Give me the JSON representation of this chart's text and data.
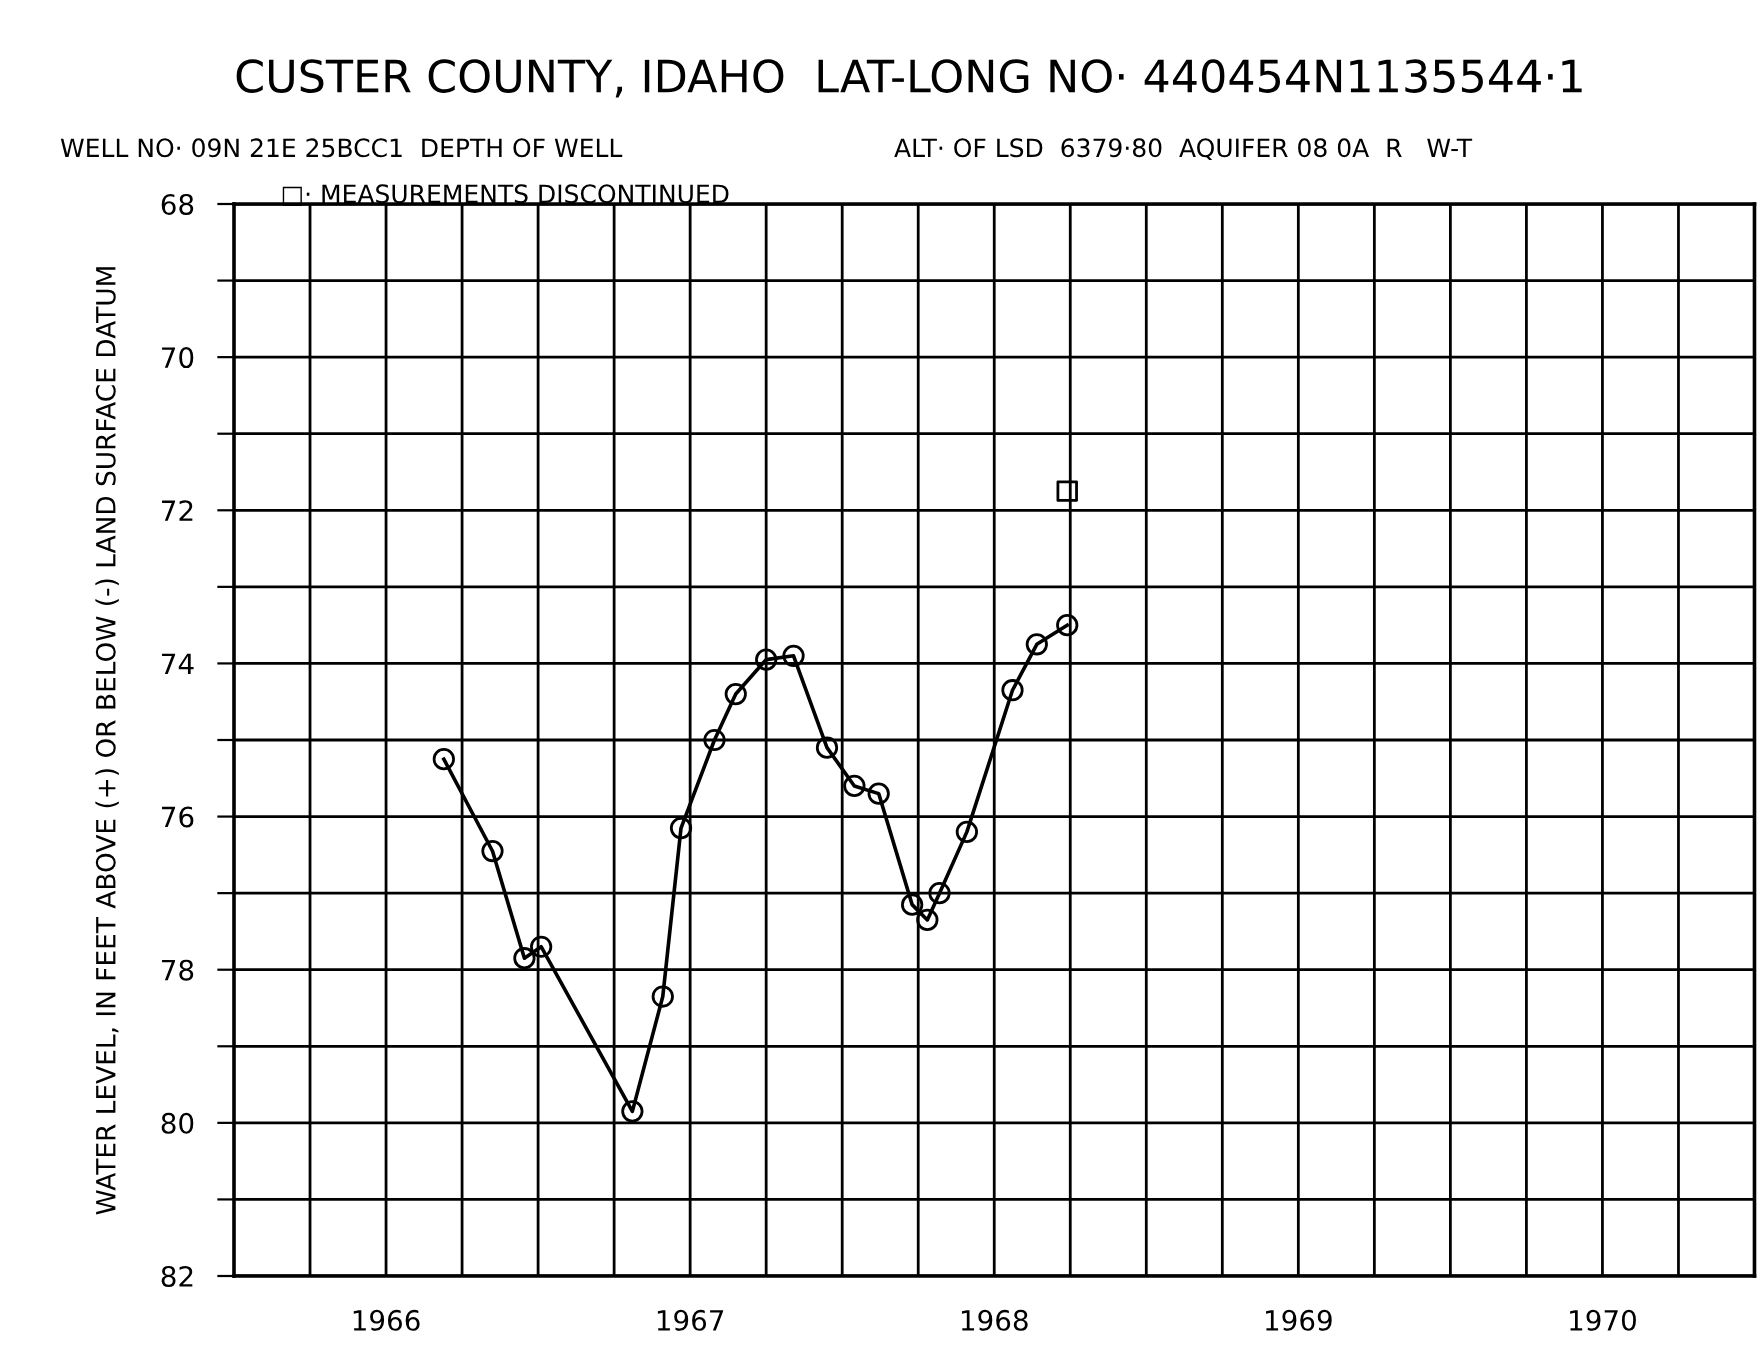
{
  "chart_data": {
    "type": "line",
    "title": "CUSTER COUNTY, IDAHO",
    "subtitle": "LAT-LONG NO· 440454N1135544·1",
    "annotations": [
      "WELL NO· 09N 21E 25BCC1  DEPTH OF WELL",
      "□· MEASUREMENTS DISCONTINUED",
      "ALT· OF LSD  6379·80  AQUIFER 08 0A  R   W-T"
    ],
    "ylabel": "WATER LEVEL, IN FEET ABOVE (+) OR BELOW (-) LAND SURFACE DATUM",
    "series": [
      {
        "color": "#000000",
        "marker": "circle",
        "x": [
          1966.69,
          1966.85,
          1966.955,
          1967.01,
          1967.31,
          1967.41,
          1967.47,
          1967.58,
          1967.65,
          1967.75,
          1967.84,
          1967.95,
          1968.04,
          1968.12,
          1968.23,
          1968.28,
          1968.32,
          1968.41,
          1968.56,
          1968.64,
          1968.74
        ],
        "values": [
          75.25,
          76.45,
          77.85,
          77.7,
          79.85,
          78.35,
          76.15,
          75.0,
          74.4,
          73.95,
          73.9,
          75.1,
          75.6,
          75.7,
          77.15,
          77.35,
          77.0,
          76.2,
          74.35,
          73.75,
          73.5
        ]
      },
      {
        "type": "scatter",
        "color": "#000000",
        "marker": "square",
        "x": [
          1968.74
        ],
        "values": [
          71.75
        ]
      }
    ],
    "xlim": [
      1966,
      1971
    ],
    "xticks": [
      {
        "value": 1966.25,
        "label": null
      },
      {
        "value": 1966.5,
        "label": "1966"
      },
      {
        "value": 1966.75,
        "label": null
      },
      {
        "value": 1967,
        "label": null
      },
      {
        "value": 1967.25,
        "label": null
      },
      {
        "value": 1967.5,
        "label": "1967"
      },
      {
        "value": 1967.75,
        "label": null
      },
      {
        "value": 1968,
        "label": null
      },
      {
        "value": 1968.25,
        "label": null
      },
      {
        "value": 1968.5,
        "label": "1968"
      },
      {
        "value": 1968.75,
        "label": null
      },
      {
        "value": 1969,
        "label": null
      },
      {
        "value": 1969.25,
        "label": null
      },
      {
        "value": 1969.5,
        "label": "1969"
      },
      {
        "value": 1969.75,
        "label": null
      },
      {
        "value": 1970,
        "label": null
      },
      {
        "value": 1970.25,
        "label": null
      },
      {
        "value": 1970.5,
        "label": "1970"
      },
      {
        "value": 1970.75,
        "label": null
      }
    ],
    "ylim": [
      82,
      68
    ],
    "yticks": [
      68,
      {
        "value": 69,
        "label": null
      },
      70,
      {
        "value": 71,
        "label": null
      },
      72,
      {
        "value": 73,
        "label": null
      },
      74,
      {
        "value": 75,
        "label": null
      },
      76,
      {
        "value": 77,
        "label": null
      },
      78,
      {
        "value": 79,
        "label": null
      },
      80,
      {
        "value": 81,
        "label": null
      },
      82
    ],
    "grid": true,
    "line_style": "solid",
    "legend": false
  }
}
